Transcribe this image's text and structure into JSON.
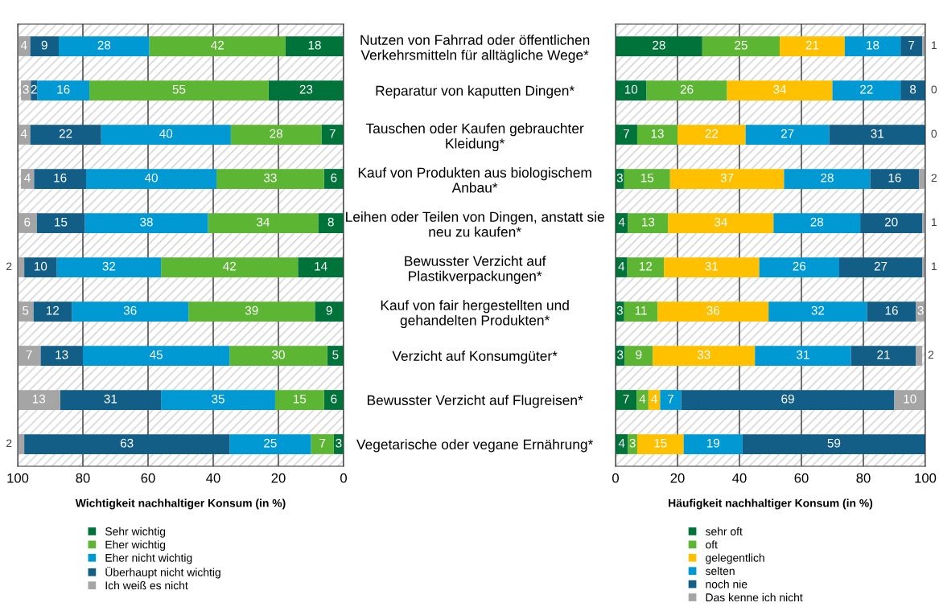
{
  "chart_data": [
    {
      "type": "bar",
      "orientation": "horizontal",
      "stacked": true,
      "grid": "x",
      "legend": "bottom",
      "xlabel": "Wichtigkeit nachhaltiger Konsum (in %)",
      "xlim": [
        100,
        0
      ],
      "xticks": [
        0,
        20,
        40,
        60,
        80,
        100
      ],
      "categories": [
        null,
        null,
        null,
        null,
        null,
        null,
        null,
        null,
        null,
        null
      ],
      "series": [
        {
          "name": "Sehr wichtig",
          "color": "#00733a",
          "values": [
            17.8,
            23,
            6.8,
            6,
            7.8,
            14,
            8.8,
            5,
            6,
            3
          ],
          "value_labels": [
            "18",
            "23",
            "7",
            "6",
            "8",
            "14",
            "9",
            "5",
            "6",
            "3"
          ]
        },
        {
          "name": "Eher wichtig",
          "color": "#5db534",
          "values": [
            41.8,
            55,
            27.8,
            33,
            33.8,
            42,
            38.8,
            30,
            15,
            7
          ],
          "value_labels": [
            "42",
            "55",
            "28",
            "33",
            "34",
            "42",
            "39",
            "30",
            "15",
            "7"
          ]
        },
        {
          "name": "Eher nicht wichtig",
          "color": "#0099d4",
          "values": [
            27.8,
            16,
            39.8,
            40,
            37.8,
            32,
            35.8,
            45,
            35,
            25
          ],
          "value_labels": [
            "28",
            "16",
            "40",
            "40",
            "38",
            "32",
            "36",
            "45",
            "35",
            "25"
          ]
        },
        {
          "name": "Überhaupt nicht wichtig",
          "color": "#135e87",
          "values": [
            8.8,
            2,
            21.8,
            16,
            14.8,
            10,
            11.8,
            13,
            31,
            63
          ],
          "value_labels": [
            "9",
            "2",
            "22",
            "16",
            "15",
            "10",
            "12",
            "13",
            "31",
            "63"
          ]
        },
        {
          "name": "Ich weiß es nicht",
          "color": "#a5a5a5",
          "values": [
            3.8,
            3,
            3.8,
            4,
            5.8,
            2,
            4.8,
            7,
            13,
            2
          ],
          "value_labels": [
            "4",
            "3",
            "4",
            "4",
            "6",
            "2",
            "5",
            "7",
            "13",
            "2"
          ]
        }
      ]
    },
    {
      "type": "bar",
      "orientation": "horizontal",
      "stacked": true,
      "grid": "x",
      "legend": "bottom",
      "xlabel": "Häufigkeit nachhaltiger Konsum (in %)",
      "xlim": [
        0,
        100
      ],
      "xticks": [
        0,
        20,
        40,
        60,
        80,
        100
      ],
      "categories": [
        "Nutzen von Fahrrad oder öffentlichen\nVerkehrsmitteln für alltägliche Wege*",
        "Reparatur von kaputten Dingen*",
        "Tauschen oder Kaufen gebrauchter\nKleidung*",
        "Kauf von Produkten aus biologischem\nAnbau*",
        "Leihen oder Teilen von Dingen, anstatt sie\nneu zu kaufen*",
        "Bewusster Verzicht auf\nPlastikverpackungen*",
        "Kauf von fair hergestellten und\ngehandelten Produkten*",
        "Verzicht auf Konsumgüter*",
        "Bewusster Verzicht auf Flugreisen*",
        "Vegetarische oder vegane Ernährung*"
      ],
      "series": [
        {
          "name": "sehr oft",
          "color": "#00733a",
          "values": [
            28,
            10,
            7,
            2.8,
            4,
            3.8,
            2.8,
            3,
            6.8,
            4
          ],
          "value_labels": [
            "28",
            "10",
            "7",
            "3",
            "4",
            "4",
            "3",
            "3",
            "7",
            "4"
          ]
        },
        {
          "name": "oft",
          "color": "#5db534",
          "values": [
            25,
            26,
            13,
            14.8,
            13,
            11.8,
            10.8,
            9,
            3.8,
            3
          ],
          "value_labels": [
            "25",
            "26",
            "13",
            "15",
            "13",
            "12",
            "11",
            "9",
            "4",
            "3"
          ]
        },
        {
          "name": "gelegentlich",
          "color": "#ffc000",
          "values": [
            21,
            34,
            22,
            36.8,
            34,
            30.8,
            35.8,
            33,
            3.8,
            15
          ],
          "value_labels": [
            "21",
            "34",
            "22",
            "37",
            "34",
            "31",
            "36",
            "33",
            "4",
            "15"
          ]
        },
        {
          "name": "selten",
          "color": "#0099d4",
          "values": [
            18,
            22,
            27,
            27.8,
            28,
            25.8,
            31.8,
            31,
            6.8,
            19
          ],
          "value_labels": [
            "18",
            "22",
            "27",
            "28",
            "28",
            "26",
            "32",
            "31",
            "7",
            "19"
          ]
        },
        {
          "name": "noch nie",
          "color": "#135e87",
          "values": [
            7,
            8,
            31,
            15.8,
            20,
            26.8,
            15.8,
            21,
            68.8,
            59
          ],
          "value_labels": [
            "7",
            "8",
            "31",
            "16",
            "20",
            "27",
            "16",
            "21",
            "69",
            "59"
          ]
        },
        {
          "name": "Das kenne ich nicht",
          "color": "#a5a5a5",
          "values": [
            1,
            0,
            0,
            2,
            1,
            1,
            3,
            2,
            10,
            null
          ],
          "value_labels": [
            "1",
            "0",
            "0",
            "2",
            "1",
            "1",
            "3",
            "2",
            "10",
            null
          ]
        }
      ]
    }
  ]
}
